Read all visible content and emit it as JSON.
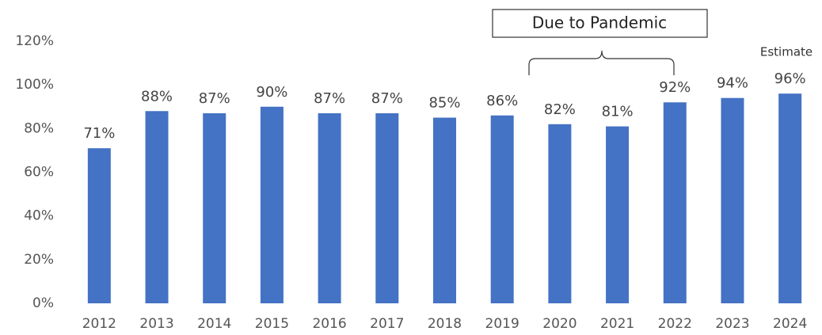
{
  "chart_data": {
    "type": "bar",
    "categories": [
      "2012",
      "2013",
      "2014",
      "2015",
      "2016",
      "2017",
      "2018",
      "2019",
      "2020",
      "2021",
      "2022",
      "2023",
      "2024"
    ],
    "values": [
      71,
      88,
      87,
      90,
      87,
      87,
      85,
      86,
      82,
      81,
      92,
      94,
      96
    ],
    "value_labels": [
      "71%",
      "88%",
      "87%",
      "90%",
      "87%",
      "87%",
      "85%",
      "86%",
      "82%",
      "81%",
      "92%",
      "94%",
      "96%"
    ],
    "color": "#4472c4",
    "ylim": [
      0,
      120
    ],
    "yticks": [
      {
        "value": 0,
        "label": "0%"
      },
      {
        "value": 20,
        "label": "20%"
      },
      {
        "value": 40,
        "label": "40%"
      },
      {
        "value": 60,
        "label": "60%"
      },
      {
        "value": 80,
        "label": "80%"
      },
      {
        "value": 100,
        "label": "100%"
      },
      {
        "value": 120,
        "label": "120%"
      }
    ],
    "grid": false,
    "annotations": [
      {
        "text": "Due to Pandemic"
      },
      {
        "text": "Estimate"
      }
    ]
  }
}
